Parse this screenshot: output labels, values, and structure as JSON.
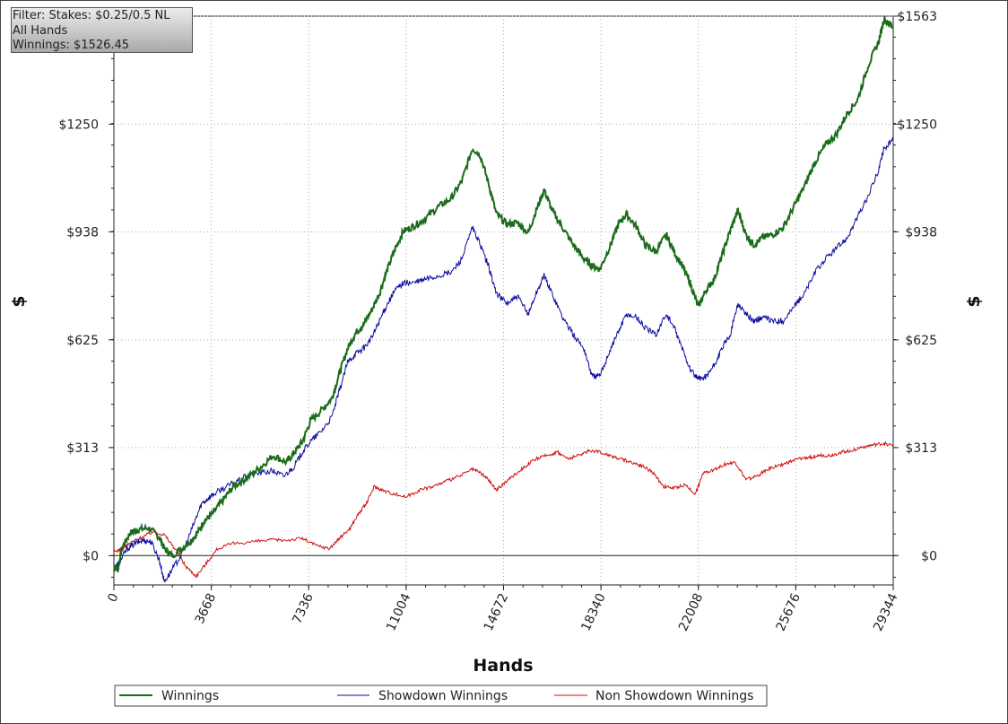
{
  "info_box": {
    "filter": "Filter: Stakes: $0.25/0.5 NL",
    "hands": "All Hands",
    "winnings": "Winnings: $1526.45"
  },
  "chart_data": {
    "type": "line",
    "xlabel": "Hands",
    "ylabel": "$",
    "xlim": [
      0,
      29344
    ],
    "ylim": [
      -85,
      1563
    ],
    "x_ticks": [
      "0",
      "3668",
      "7336",
      "11004",
      "14672",
      "18340",
      "22008",
      "25676",
      "29344"
    ],
    "y_ticks": [
      {
        "label": "$0",
        "value": 0
      },
      {
        "label": "$313",
        "value": 313
      },
      {
        "label": "$625",
        "value": 625
      },
      {
        "label": "$938",
        "value": 938
      },
      {
        "label": "$1250",
        "value": 1250
      },
      {
        "label": "$1563",
        "value": 1563
      }
    ],
    "grid": true,
    "legend_position": "bottom",
    "series": [
      {
        "name": "Winnings",
        "color": "#1a6b1a",
        "points": [
          [
            0,
            -30
          ],
          [
            150,
            -40
          ],
          [
            300,
            20
          ],
          [
            600,
            65
          ],
          [
            900,
            75
          ],
          [
            1300,
            80
          ],
          [
            1700,
            55
          ],
          [
            1900,
            20
          ],
          [
            2200,
            0
          ],
          [
            2700,
            30
          ],
          [
            3100,
            60
          ],
          [
            3400,
            100
          ],
          [
            3700,
            120
          ],
          [
            4100,
            160
          ],
          [
            4500,
            200
          ],
          [
            5000,
            225
          ],
          [
            5500,
            255
          ],
          [
            6000,
            290
          ],
          [
            6500,
            270
          ],
          [
            6800,
            300
          ],
          [
            7100,
            330
          ],
          [
            7400,
            390
          ],
          [
            7800,
            420
          ],
          [
            8200,
            455
          ],
          [
            8500,
            530
          ],
          [
            8800,
            600
          ],
          [
            9100,
            645
          ],
          [
            9400,
            670
          ],
          [
            9700,
            710
          ],
          [
            10000,
            760
          ],
          [
            10300,
            830
          ],
          [
            10600,
            890
          ],
          [
            10900,
            940
          ],
          [
            11300,
            955
          ],
          [
            11700,
            975
          ],
          [
            12200,
            1010
          ],
          [
            12700,
            1035
          ],
          [
            13100,
            1085
          ],
          [
            13500,
            1180
          ],
          [
            13800,
            1160
          ],
          [
            14100,
            1080
          ],
          [
            14400,
            990
          ],
          [
            14800,
            960
          ],
          [
            15200,
            965
          ],
          [
            15600,
            935
          ],
          [
            15900,
            1000
          ],
          [
            16200,
            1060
          ],
          [
            16500,
            1000
          ],
          [
            16900,
            950
          ],
          [
            17300,
            900
          ],
          [
            17700,
            860
          ],
          [
            18000,
            840
          ],
          [
            18300,
            830
          ],
          [
            18700,
            900
          ],
          [
            19000,
            960
          ],
          [
            19300,
            990
          ],
          [
            19700,
            950
          ],
          [
            20000,
            900
          ],
          [
            20400,
            880
          ],
          [
            20800,
            930
          ],
          [
            21100,
            880
          ],
          [
            21400,
            840
          ],
          [
            21700,
            790
          ],
          [
            22000,
            720
          ],
          [
            22300,
            770
          ],
          [
            22600,
            800
          ],
          [
            22900,
            870
          ],
          [
            23200,
            940
          ],
          [
            23500,
            1000
          ],
          [
            23800,
            930
          ],
          [
            24100,
            900
          ],
          [
            24400,
            920
          ],
          [
            24800,
            930
          ],
          [
            25200,
            950
          ],
          [
            25600,
            1010
          ],
          [
            26000,
            1070
          ],
          [
            26400,
            1140
          ],
          [
            26800,
            1190
          ],
          [
            27200,
            1220
          ],
          [
            27600,
            1280
          ],
          [
            28000,
            1320
          ],
          [
            28400,
            1420
          ],
          [
            28800,
            1490
          ],
          [
            29000,
            1555
          ],
          [
            29344,
            1530
          ]
        ]
      },
      {
        "name": "Showdown Winnings",
        "color": "#0a0a9e",
        "points": [
          [
            0,
            -40
          ],
          [
            200,
            -20
          ],
          [
            500,
            20
          ],
          [
            800,
            35
          ],
          [
            1100,
            45
          ],
          [
            1400,
            40
          ],
          [
            1700,
            -10
          ],
          [
            1900,
            -75
          ],
          [
            2200,
            -40
          ],
          [
            2600,
            10
          ],
          [
            3000,
            90
          ],
          [
            3300,
            150
          ],
          [
            3600,
            170
          ],
          [
            4000,
            190
          ],
          [
            4500,
            210
          ],
          [
            5000,
            230
          ],
          [
            5500,
            240
          ],
          [
            6000,
            245
          ],
          [
            6400,
            230
          ],
          [
            6800,
            260
          ],
          [
            7100,
            300
          ],
          [
            7400,
            330
          ],
          [
            7800,
            360
          ],
          [
            8200,
            400
          ],
          [
            8500,
            480
          ],
          [
            8800,
            560
          ],
          [
            9100,
            585
          ],
          [
            9400,
            600
          ],
          [
            9700,
            630
          ],
          [
            10000,
            680
          ],
          [
            10300,
            730
          ],
          [
            10600,
            770
          ],
          [
            10900,
            790
          ],
          [
            11300,
            790
          ],
          [
            11700,
            800
          ],
          [
            12200,
            810
          ],
          [
            12700,
            820
          ],
          [
            13100,
            860
          ],
          [
            13500,
            950
          ],
          [
            13800,
            900
          ],
          [
            14100,
            840
          ],
          [
            14400,
            760
          ],
          [
            14800,
            730
          ],
          [
            15200,
            750
          ],
          [
            15600,
            700
          ],
          [
            15900,
            760
          ],
          [
            16200,
            810
          ],
          [
            16500,
            760
          ],
          [
            16900,
            690
          ],
          [
            17300,
            640
          ],
          [
            17700,
            600
          ],
          [
            18000,
            520
          ],
          [
            18300,
            520
          ],
          [
            18700,
            600
          ],
          [
            19000,
            650
          ],
          [
            19300,
            700
          ],
          [
            19700,
            690
          ],
          [
            20000,
            660
          ],
          [
            20400,
            640
          ],
          [
            20800,
            700
          ],
          [
            21100,
            660
          ],
          [
            21400,
            600
          ],
          [
            21700,
            540
          ],
          [
            22000,
            510
          ],
          [
            22300,
            520
          ],
          [
            22600,
            550
          ],
          [
            22900,
            600
          ],
          [
            23200,
            640
          ],
          [
            23500,
            730
          ],
          [
            23800,
            700
          ],
          [
            24100,
            680
          ],
          [
            24400,
            690
          ],
          [
            24800,
            680
          ],
          [
            25200,
            680
          ],
          [
            25600,
            720
          ],
          [
            26000,
            760
          ],
          [
            26400,
            820
          ],
          [
            26800,
            860
          ],
          [
            27200,
            890
          ],
          [
            27600,
            920
          ],
          [
            28000,
            980
          ],
          [
            28400,
            1040
          ],
          [
            28800,
            1120
          ],
          [
            29000,
            1180
          ],
          [
            29344,
            1205
          ]
        ]
      },
      {
        "name": "Non Showdown Winnings",
        "color": "#d01010",
        "points": [
          [
            0,
            10
          ],
          [
            300,
            20
          ],
          [
            700,
            40
          ],
          [
            1100,
            55
          ],
          [
            1500,
            70
          ],
          [
            1900,
            60
          ],
          [
            2300,
            20
          ],
          [
            2700,
            -30
          ],
          [
            3100,
            -60
          ],
          [
            3500,
            -20
          ],
          [
            3900,
            20
          ],
          [
            4500,
            35
          ],
          [
            5200,
            40
          ],
          [
            5900,
            45
          ],
          [
            6500,
            45
          ],
          [
            7100,
            50
          ],
          [
            7600,
            30
          ],
          [
            8100,
            20
          ],
          [
            8500,
            50
          ],
          [
            8900,
            80
          ],
          [
            9200,
            120
          ],
          [
            9500,
            150
          ],
          [
            9800,
            200
          ],
          [
            10100,
            190
          ],
          [
            10500,
            180
          ],
          [
            11000,
            170
          ],
          [
            11500,
            190
          ],
          [
            12000,
            200
          ],
          [
            12500,
            215
          ],
          [
            13000,
            230
          ],
          [
            13500,
            250
          ],
          [
            13800,
            240
          ],
          [
            14100,
            220
          ],
          [
            14400,
            190
          ],
          [
            14700,
            210
          ],
          [
            15100,
            235
          ],
          [
            15500,
            260
          ],
          [
            15900,
            280
          ],
          [
            16300,
            290
          ],
          [
            16700,
            300
          ],
          [
            17100,
            280
          ],
          [
            17500,
            290
          ],
          [
            17900,
            305
          ],
          [
            18300,
            300
          ],
          [
            18700,
            290
          ],
          [
            19100,
            280
          ],
          [
            19500,
            270
          ],
          [
            19900,
            260
          ],
          [
            20300,
            240
          ],
          [
            20700,
            200
          ],
          [
            21100,
            195
          ],
          [
            21500,
            205
          ],
          [
            21900,
            180
          ],
          [
            22200,
            240
          ],
          [
            22600,
            250
          ],
          [
            23000,
            265
          ],
          [
            23400,
            270
          ],
          [
            23800,
            220
          ],
          [
            24200,
            230
          ],
          [
            24600,
            250
          ],
          [
            25000,
            260
          ],
          [
            25400,
            270
          ],
          [
            25800,
            280
          ],
          [
            26200,
            285
          ],
          [
            26600,
            290
          ],
          [
            27000,
            290
          ],
          [
            27400,
            300
          ],
          [
            27800,
            305
          ],
          [
            28200,
            315
          ],
          [
            28600,
            320
          ],
          [
            29000,
            325
          ],
          [
            29344,
            318
          ]
        ]
      }
    ]
  }
}
